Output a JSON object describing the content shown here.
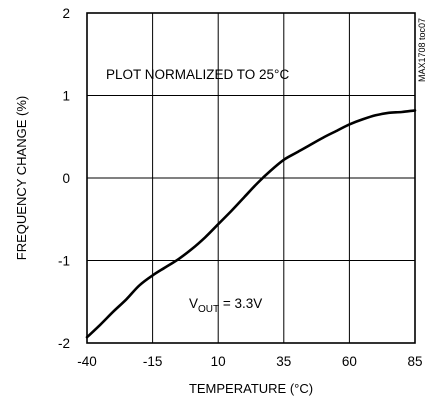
{
  "chart_data": {
    "type": "line",
    "title": "",
    "xlabel": "TEMPERATURE (°C)",
    "ylabel": "FREQUENCY CHANGE (%)",
    "xlim": [
      -40,
      85
    ],
    "ylim": [
      -2,
      2
    ],
    "x_ticks": [
      "-40",
      "-15",
      "10",
      "35",
      "60",
      "85"
    ],
    "y_ticks": [
      "2",
      "1",
      "0",
      "-1",
      "-2"
    ],
    "grid": true,
    "annotations": {
      "normalized": "PLOT NORMALIZED TO 25°C",
      "vout_prefix": "V",
      "vout_sub": "OUT",
      "vout_suffix": " = 3.3V",
      "figure_id": "MAX1708 toc07"
    },
    "series": [
      {
        "x": [
          -40,
          -35,
          -30,
          -25,
          -20,
          -15,
          -10,
          -5,
          0,
          5,
          10,
          15,
          20,
          25,
          30,
          35,
          40,
          45,
          50,
          55,
          60,
          65,
          70,
          75,
          80,
          85
        ],
        "y": [
          -1.93,
          -1.78,
          -1.62,
          -1.47,
          -1.3,
          -1.18,
          -1.08,
          -0.98,
          -0.86,
          -0.72,
          -0.56,
          -0.4,
          -0.23,
          -0.06,
          0.09,
          0.22,
          0.31,
          0.4,
          0.49,
          0.57,
          0.65,
          0.71,
          0.76,
          0.79,
          0.8,
          0.82
        ]
      }
    ]
  }
}
